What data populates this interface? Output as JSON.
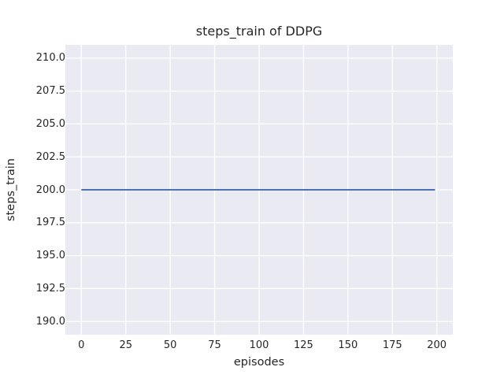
{
  "chart_data": {
    "type": "line",
    "title": "steps_train of DDPG",
    "xlabel": "episodes",
    "ylabel": "steps_train",
    "x_tick_labels": [
      "0",
      "25",
      "50",
      "75",
      "100",
      "125",
      "150",
      "175",
      "200"
    ],
    "y_tick_labels": [
      "190.0",
      "192.5",
      "195.0",
      "197.5",
      "200.0",
      "202.5",
      "205.0",
      "207.5",
      "210.0"
    ],
    "xlim": [
      -9,
      209
    ],
    "ylim": [
      189,
      211
    ],
    "grid": true,
    "legend": "none",
    "plot_background_color": "#eaeaf2",
    "grid_color": "#ffffff",
    "text_color": "#262626",
    "series": [
      {
        "name": "steps_train",
        "color": "#4c72b0",
        "line_width": 2,
        "x": [
          0,
          199
        ],
        "y": [
          200,
          200
        ],
        "description": "constant value 200 for all episodes 0-199"
      }
    ]
  }
}
